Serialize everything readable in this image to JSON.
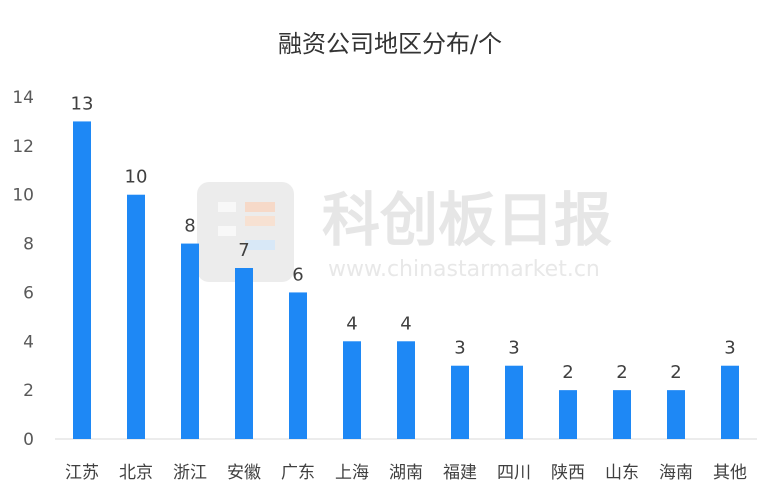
{
  "chart_data": {
    "type": "bar",
    "title": "融资公司地区分布/个",
    "categories": [
      "江苏",
      "北京",
      "浙江",
      "安徽",
      "广东",
      "上海",
      "湖南",
      "福建",
      "四川",
      "陕西",
      "山东",
      "海南",
      "其他"
    ],
    "values": [
      13,
      10,
      8,
      7,
      6,
      4,
      4,
      3,
      3,
      2,
      2,
      2,
      3
    ],
    "ylim": [
      0,
      14
    ],
    "yticks": [
      0,
      2,
      4,
      6,
      8,
      10,
      12,
      14
    ],
    "xlabel": "",
    "ylabel": "",
    "grid": false,
    "bar_color": "#1e88f5",
    "data_labels": true
  },
  "watermark": {
    "brand": "科创板日报",
    "url": "www.chinastarmarket.cn"
  }
}
